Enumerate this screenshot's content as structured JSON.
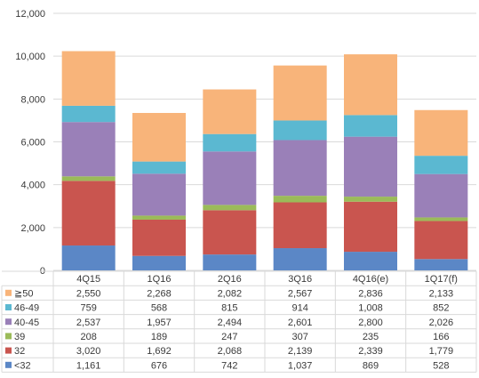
{
  "chart_data": {
    "type": "bar",
    "stacked": true,
    "categories": [
      "4Q15",
      "1Q16",
      "2Q16",
      "3Q16",
      "4Q16(e)",
      "1Q17(f)"
    ],
    "series": [
      {
        "name": "<32",
        "color": "#5b87c6",
        "values": [
          1161,
          676,
          742,
          1037,
          869,
          528
        ]
      },
      {
        "name": "32",
        "color": "#c9554f",
        "values": [
          3020,
          1692,
          2068,
          2139,
          2339,
          1779
        ]
      },
      {
        "name": "39",
        "color": "#9bbb59",
        "values": [
          208,
          189,
          247,
          307,
          235,
          166
        ]
      },
      {
        "name": "40-45",
        "color": "#9a80b8",
        "values": [
          2537,
          1957,
          2494,
          2601,
          2800,
          2026
        ]
      },
      {
        "name": "46-49",
        "color": "#5bb8d1",
        "values": [
          759,
          568,
          815,
          914,
          1008,
          852
        ]
      },
      {
        "name": "≧50",
        "color": "#f8b47a",
        "values": [
          2550,
          2268,
          2082,
          2567,
          2836,
          2133
        ]
      }
    ],
    "table_rows": [
      {
        "name": "≧50",
        "values": [
          "2,550",
          "2,268",
          "2,082",
          "2,567",
          "2,836",
          "2,133"
        ]
      },
      {
        "name": "46-49",
        "values": [
          "759",
          "568",
          "815",
          "914",
          "1,008",
          "852"
        ]
      },
      {
        "name": "40-45",
        "values": [
          "2,537",
          "1,957",
          "2,494",
          "2,601",
          "2,800",
          "2,026"
        ]
      },
      {
        "name": "39",
        "values": [
          "208",
          "189",
          "247",
          "307",
          "235",
          "166"
        ]
      },
      {
        "name": "32",
        "values": [
          "3,020",
          "1,692",
          "2,068",
          "2,139",
          "2,339",
          "1,779"
        ]
      },
      {
        "name": "<32",
        "values": [
          "1,161",
          "676",
          "742",
          "1,037",
          "869",
          "528"
        ]
      }
    ],
    "ylim": [
      0,
      12000
    ],
    "yticks": [
      "0",
      "2,000",
      "4,000",
      "6,000",
      "8,000",
      "10,000",
      "12,000"
    ],
    "grid": true,
    "legend": "data-table-left"
  }
}
